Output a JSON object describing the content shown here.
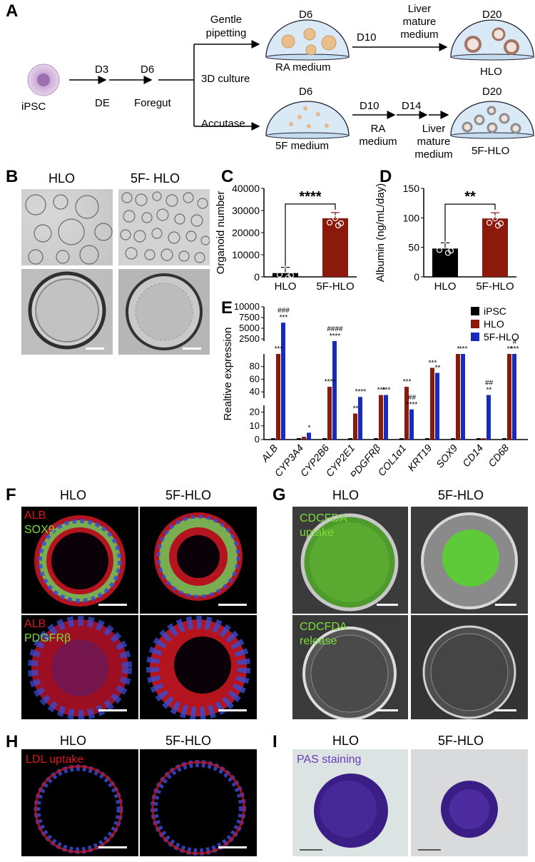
{
  "panels": {
    "A": "A",
    "B": "B",
    "C": "C",
    "D": "D",
    "E": "E",
    "F": "F",
    "G": "G",
    "H": "H",
    "I": "I"
  },
  "panelA": {
    "ipsc": "iPSC",
    "d3": "D3",
    "de": "DE",
    "d6": "D6",
    "foregut": "Foregut",
    "gentle1": "Gentle",
    "gentle2": "pipetting",
    "culture3d": "3D culture",
    "accutase": "Accutase",
    "top_d6": "D6",
    "ra_medium": "RA medium",
    "top_d10": "D10",
    "liver1": "Liver",
    "liver2": "mature",
    "liver3": "medium",
    "top_d20": "D20",
    "hlo": "HLO",
    "bot_d6": "D6",
    "f5_medium": "5F medium",
    "bot_d10": "D10",
    "bot_d14": "D14",
    "ra1": "RA",
    "ra2": "medium",
    "bliver1": "Liver",
    "bliver2": "mature",
    "bliver3": "medium",
    "bot_d20": "D20",
    "f5hlo": "5F-HLO"
  },
  "panelB": {
    "hlo": "HLO",
    "f5hlo": "5F- HLO"
  },
  "panelF": {
    "hlo": "HLO",
    "f5hlo": "5F-HLO",
    "alb1": "ALB",
    "sox9": "SOX9",
    "alb2": "ALB",
    "pdgfrb": "PDGFRβ"
  },
  "panelG": {
    "hlo": "HLO",
    "f5hlo": "5F-HLO",
    "up1": "CDCFDA",
    "up2": "uptake",
    "rel1": "CDCFDA",
    "rel2": "release"
  },
  "panelH": {
    "hlo": "HLO",
    "f5hlo": "5F-HLO",
    "ldl": "LDL uptake"
  },
  "panelI": {
    "hlo": "HLO",
    "f5hlo": "5F-HLO",
    "pas": "PAS staining"
  },
  "colors": {
    "black": "#000000",
    "hlo_red": "#8b1a0c",
    "f5_blue": "#1a2bb8",
    "green_text": "#7ddc3a"
  },
  "chart_data": [
    {
      "id": "C",
      "type": "bar",
      "ylabel": "Organoid number",
      "categories": [
        "HLO",
        "5F-HLO"
      ],
      "values": [
        1700,
        26500
      ],
      "ylim": [
        0,
        40000
      ],
      "yticks": [
        "0",
        "10000",
        "20000",
        "30000",
        "40000"
      ],
      "significance": "****"
    },
    {
      "id": "D",
      "type": "bar",
      "ylabel": "Albumin  (ng/mL/day)",
      "categories": [
        "HLO",
        "5F-HLO"
      ],
      "values": [
        48,
        99
      ],
      "ylim": [
        0,
        150
      ],
      "yticks": [
        "0",
        "50",
        "100",
        "150"
      ],
      "significance": "**"
    },
    {
      "id": "E",
      "type": "bar",
      "ylabel": "Realtive expression",
      "categories": [
        "ALB",
        "CYP3A4",
        "CYP2B6",
        "CYP2E1",
        "PDGFRβ",
        "COL1α1",
        "KRT19",
        "SOX9",
        "CD14",
        "CD68"
      ],
      "legend": [
        "iPSC",
        "HLO",
        "5F-HLO"
      ],
      "yticks_top": [
        "2500",
        "5000",
        "7500",
        "10000"
      ],
      "yticks_mid": [
        "40",
        "60",
        "80"
      ],
      "yticks_low": [
        "0",
        "10",
        "20"
      ],
      "series": [
        {
          "name": "iPSC",
          "values": [
            1,
            1,
            1,
            1,
            1,
            1,
            1,
            1,
            1,
            1
          ]
        },
        {
          "name": "HLO",
          "values": [
            100,
            2,
            48,
            19,
            35,
            48,
            78,
            100,
            1,
            100
          ]
        },
        {
          "name": "5F-HLO",
          "values": [
            6300,
            5,
            2000,
            32,
            35,
            22,
            70,
            100,
            35,
            1200
          ]
        }
      ],
      "annotations": [
        {
          "text": "***",
          "cat": 0,
          "series": 1
        },
        {
          "text": "###",
          "cat": 0,
          "series": 2,
          "row": 1
        },
        {
          "text": "***",
          "cat": 0,
          "series": 2,
          "row": 0
        },
        {
          "text": "*",
          "cat": 1,
          "series": 2,
          "row": 0
        },
        {
          "text": "####",
          "cat": 2,
          "series": 2,
          "row": 1
        },
        {
          "text": "****",
          "cat": 2,
          "series": 2,
          "row": 0
        },
        {
          "text": "****",
          "cat": 2,
          "series": 1,
          "row": 0
        },
        {
          "text": "**",
          "cat": 3,
          "series": 1,
          "row": 0
        },
        {
          "text": "****",
          "cat": 3,
          "series": 2,
          "row": 0
        },
        {
          "text": "***",
          "cat": 4,
          "series": 1,
          "row": 0
        },
        {
          "text": "***",
          "cat": 4,
          "series": 2,
          "row": 0
        },
        {
          "text": "***",
          "cat": 5,
          "series": 1,
          "row": 0
        },
        {
          "text": "##",
          "cat": 5,
          "series": 2,
          "row": 1
        },
        {
          "text": "****",
          "cat": 5,
          "series": 2,
          "row": 0
        },
        {
          "text": "***",
          "cat": 6,
          "series": 1,
          "row": 0
        },
        {
          "text": "**",
          "cat": 6,
          "series": 2,
          "row": 0
        },
        {
          "text": "*",
          "cat": 7,
          "series": 1,
          "row": 0
        },
        {
          "text": "***",
          "cat": 7,
          "series": 2,
          "row": 0
        },
        {
          "text": "##",
          "cat": 8,
          "series": 2,
          "row": 1
        },
        {
          "text": "**",
          "cat": 8,
          "series": 2,
          "row": 0
        },
        {
          "text": "**",
          "cat": 9,
          "series": 1,
          "row": 0
        },
        {
          "text": "#",
          "cat": 9,
          "series": 2,
          "row": 1
        },
        {
          "text": "***",
          "cat": 9,
          "series": 2,
          "row": 0
        }
      ]
    }
  ]
}
